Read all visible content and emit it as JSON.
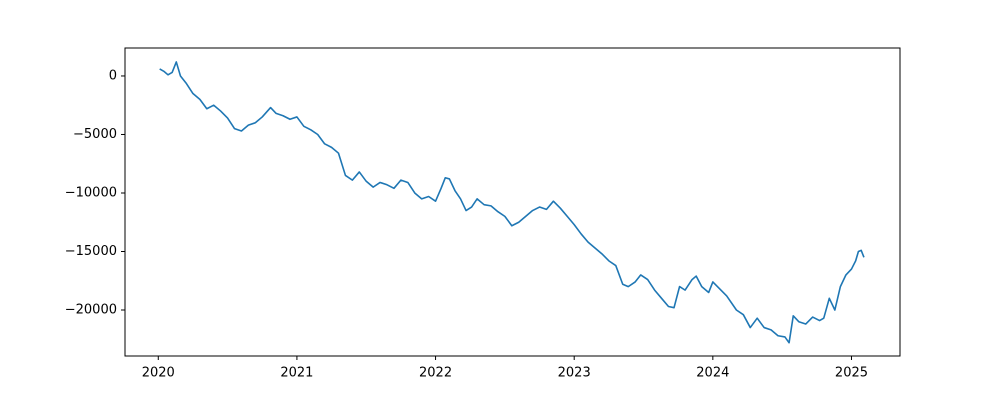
{
  "chart_data": {
    "type": "line",
    "color": "#1f77b4",
    "x": [
      2020.01,
      2020.04,
      2020.07,
      2020.1,
      2020.13,
      2020.16,
      2020.2,
      2020.25,
      2020.3,
      2020.35,
      2020.4,
      2020.45,
      2020.5,
      2020.55,
      2020.6,
      2020.65,
      2020.7,
      2020.75,
      2020.81,
      2020.85,
      2020.9,
      2020.95,
      2021.0,
      2021.05,
      2021.1,
      2021.15,
      2021.2,
      2021.25,
      2021.3,
      2021.35,
      2021.4,
      2021.45,
      2021.5,
      2021.55,
      2021.6,
      2021.65,
      2021.7,
      2021.75,
      2021.8,
      2021.85,
      2021.9,
      2021.95,
      2022.0,
      2022.04,
      2022.07,
      2022.1,
      2022.14,
      2022.18,
      2022.22,
      2022.26,
      2022.3,
      2022.35,
      2022.4,
      2022.45,
      2022.5,
      2022.55,
      2022.6,
      2022.65,
      2022.7,
      2022.75,
      2022.8,
      2022.85,
      2022.9,
      2022.95,
      2023.0,
      2023.05,
      2023.1,
      2023.15,
      2023.2,
      2023.25,
      2023.3,
      2023.35,
      2023.39,
      2023.44,
      2023.48,
      2023.53,
      2023.58,
      2023.63,
      2023.68,
      2023.72,
      2023.76,
      2023.8,
      2023.85,
      2023.88,
      2023.92,
      2023.97,
      2024.0,
      2024.05,
      2024.1,
      2024.17,
      2024.22,
      2024.27,
      2024.32,
      2024.37,
      2024.42,
      2024.47,
      2024.52,
      2024.55,
      2024.58,
      2024.62,
      2024.67,
      2024.72,
      2024.77,
      2024.8,
      2024.84,
      2024.88,
      2024.92,
      2024.96,
      2025.0,
      2025.03,
      2025.05,
      2025.07,
      2025.09
    ],
    "values": [
      600,
      400,
      100,
      300,
      1200,
      0,
      -600,
      -1500,
      -2000,
      -2800,
      -2500,
      -3000,
      -3600,
      -4500,
      -4700,
      -4200,
      -4000,
      -3500,
      -2700,
      -3200,
      -3400,
      -3700,
      -3500,
      -4300,
      -4600,
      -5000,
      -5800,
      -6100,
      -6600,
      -8500,
      -8900,
      -8200,
      -9000,
      -9500,
      -9100,
      -9300,
      -9600,
      -8900,
      -9100,
      -10000,
      -10500,
      -10300,
      -10700,
      -9600,
      -8700,
      -8800,
      -9800,
      -10500,
      -11500,
      -11200,
      -10500,
      -11000,
      -11100,
      -11600,
      -12000,
      -12800,
      -12500,
      -12000,
      -11500,
      -11200,
      -11400,
      -10700,
      -11300,
      -12000,
      -12700,
      -13500,
      -14200,
      -14700,
      -15200,
      -15800,
      -16200,
      -17800,
      -18000,
      -17600,
      -17000,
      -17400,
      -18300,
      -19000,
      -19700,
      -19800,
      -18000,
      -18300,
      -17400,
      -17100,
      -18000,
      -18500,
      -17600,
      -18200,
      -18800,
      -20000,
      -20400,
      -21500,
      -20700,
      -21500,
      -21700,
      -22200,
      -22300,
      -22800,
      -20500,
      -21000,
      -21200,
      -20600,
      -20900,
      -20700,
      -19000,
      -20000,
      -18000,
      -17000,
      -16500,
      -15800,
      -15000,
      -14900,
      -15500
    ],
    "xlim": [
      2019.76,
      2025.35
    ],
    "xticks": [
      2020,
      2021,
      2022,
      2023,
      2024,
      2025
    ],
    "ylim": [
      -23930,
      2390
    ],
    "yticks": [
      0,
      {
        "value": -5000,
        "label": "−5000"
      },
      {
        "value": -10000,
        "label": "−10000"
      },
      {
        "value": -15000,
        "label": "−15000"
      },
      {
        "value": -20000,
        "label": "−20000"
      }
    ]
  }
}
